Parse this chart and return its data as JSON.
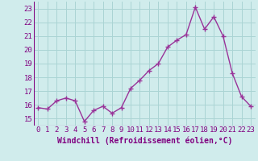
{
  "x": [
    0,
    1,
    2,
    3,
    4,
    5,
    6,
    7,
    8,
    9,
    10,
    11,
    12,
    13,
    14,
    15,
    16,
    17,
    18,
    19,
    20,
    21,
    22,
    23
  ],
  "y": [
    15.8,
    15.7,
    16.3,
    16.5,
    16.3,
    14.8,
    15.6,
    15.9,
    15.4,
    15.8,
    17.2,
    17.8,
    18.5,
    19.0,
    20.2,
    20.7,
    21.1,
    23.1,
    21.5,
    22.4,
    21.0,
    18.3,
    16.6,
    15.9
  ],
  "line_color": "#993399",
  "marker": "+",
  "marker_size": 4,
  "linewidth": 1.0,
  "bg_color": "#d0ecec",
  "grid_color": "#aad4d4",
  "xlabel": "Windchill (Refroidissement éolien,°C)",
  "xlabel_fontsize": 7,
  "tick_fontsize": 6.5,
  "ylim": [
    14.5,
    23.5
  ],
  "yticks": [
    15,
    16,
    17,
    18,
    19,
    20,
    21,
    22,
    23
  ],
  "xticks": [
    0,
    1,
    2,
    3,
    4,
    5,
    6,
    7,
    8,
    9,
    10,
    11,
    12,
    13,
    14,
    15,
    16,
    17,
    18,
    19,
    20,
    21,
    22,
    23
  ]
}
